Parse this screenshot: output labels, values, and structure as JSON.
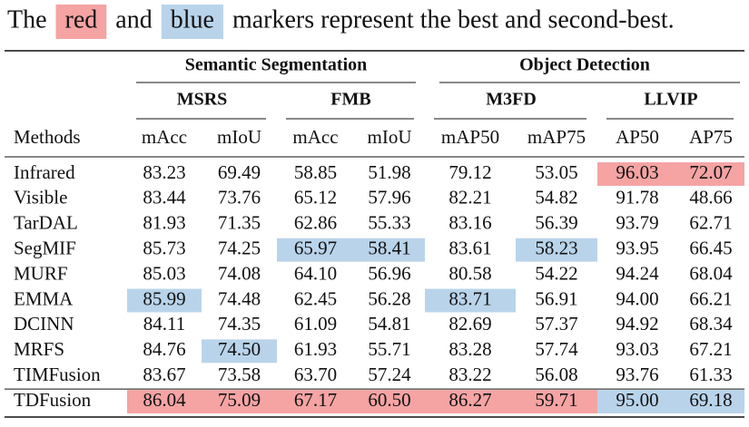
{
  "caption": {
    "parts": [
      "The",
      "red",
      "and",
      "blue",
      "markers represent the best and second-best."
    ]
  },
  "highlight_colors": {
    "red": "#f5a3a3",
    "blue": "#b9d4ea"
  },
  "table": {
    "groups": [
      "Semantic Segmentation",
      "Object Detection"
    ],
    "datasets": [
      "MSRS",
      "FMB",
      "M3FD",
      "LLVIP"
    ],
    "columns": [
      "Methods",
      "mAcc",
      "mIoU",
      "mAcc",
      "mIoU",
      "mAP50",
      "mAP75",
      "AP50",
      "AP75"
    ],
    "rows": [
      {
        "method": "Infrared",
        "values": [
          "83.23",
          "69.49",
          "58.85",
          "51.98",
          "79.12",
          "53.05",
          "96.03",
          "72.07"
        ],
        "marks": [
          null,
          null,
          null,
          null,
          null,
          null,
          "red",
          "red"
        ]
      },
      {
        "method": "Visible",
        "values": [
          "83.44",
          "73.76",
          "65.12",
          "57.96",
          "82.21",
          "54.82",
          "91.78",
          "48.66"
        ],
        "marks": [
          null,
          null,
          null,
          null,
          null,
          null,
          null,
          null
        ]
      },
      {
        "method": "TarDAL",
        "values": [
          "81.93",
          "71.35",
          "62.86",
          "55.33",
          "83.16",
          "56.39",
          "93.79",
          "62.71"
        ],
        "marks": [
          null,
          null,
          null,
          null,
          null,
          null,
          null,
          null
        ]
      },
      {
        "method": "SegMIF",
        "values": [
          "85.73",
          "74.25",
          "65.97",
          "58.41",
          "83.61",
          "58.23",
          "93.95",
          "66.45"
        ],
        "marks": [
          null,
          null,
          "blue",
          "blue",
          null,
          "blue",
          null,
          null
        ]
      },
      {
        "method": "MURF",
        "values": [
          "85.03",
          "74.08",
          "64.10",
          "56.96",
          "80.58",
          "54.22",
          "94.24",
          "68.04"
        ],
        "marks": [
          null,
          null,
          null,
          null,
          null,
          null,
          null,
          null
        ]
      },
      {
        "method": "EMMA",
        "values": [
          "85.99",
          "74.48",
          "62.45",
          "56.28",
          "83.71",
          "56.91",
          "94.00",
          "66.21"
        ],
        "marks": [
          "blue",
          null,
          null,
          null,
          "blue",
          null,
          null,
          null
        ]
      },
      {
        "method": "DCINN",
        "values": [
          "84.11",
          "74.35",
          "61.09",
          "54.81",
          "82.69",
          "57.37",
          "94.92",
          "68.34"
        ],
        "marks": [
          null,
          null,
          null,
          null,
          null,
          null,
          null,
          null
        ]
      },
      {
        "method": "MRFS",
        "values": [
          "84.76",
          "74.50",
          "61.93",
          "55.71",
          "83.28",
          "57.74",
          "93.03",
          "67.21"
        ],
        "marks": [
          null,
          "blue",
          null,
          null,
          null,
          null,
          null,
          null
        ]
      },
      {
        "method": "TIMFusion",
        "values": [
          "83.67",
          "73.58",
          "63.70",
          "57.24",
          "83.22",
          "56.08",
          "93.76",
          "61.33"
        ],
        "marks": [
          null,
          null,
          null,
          null,
          null,
          null,
          null,
          null
        ]
      },
      {
        "method": "TDFusion",
        "values": [
          "86.04",
          "75.09",
          "67.17",
          "60.50",
          "86.27",
          "59.71",
          "95.00",
          "69.18"
        ],
        "marks": [
          "red",
          "red",
          "red",
          "red",
          "red",
          "red",
          "blue",
          "blue"
        ]
      }
    ]
  }
}
